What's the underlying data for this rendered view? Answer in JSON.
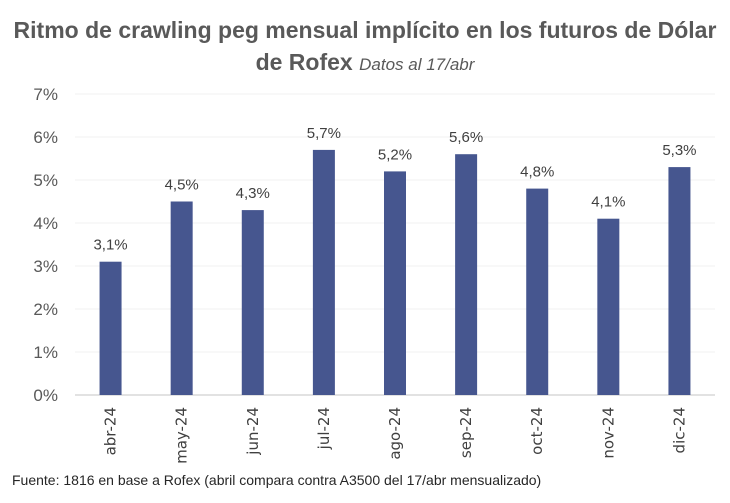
{
  "chart_data": {
    "type": "bar",
    "title": "Ritmo de crawling peg mensual implícito en los futuros de Dólar de Rofex",
    "subtitle": "Datos al  17/abr",
    "categories": [
      "abr-24",
      "may-24",
      "jun-24",
      "jul-24",
      "ago-24",
      "sep-24",
      "oct-24",
      "nov-24",
      "dic-24"
    ],
    "values": [
      3.1,
      4.5,
      4.3,
      5.7,
      5.2,
      5.6,
      4.8,
      4.1,
      5.3
    ],
    "data_labels": [
      "3,1%",
      "4,5%",
      "4,3%",
      "5,7%",
      "5,2%",
      "5,6%",
      "4,8%",
      "4,1%",
      "5,3%"
    ],
    "yticks": [
      "0%",
      "1%",
      "2%",
      "3%",
      "4%",
      "5%",
      "6%",
      "7%"
    ],
    "ylim": [
      0,
      7
    ],
    "xlabel": "",
    "ylabel": "",
    "grid": true,
    "legend": "none",
    "bar_color": "#46568F",
    "source": "Fuente: 1816 en base a  Rofex (abril compara contra A3500 del 17/abr mensualizado)"
  }
}
